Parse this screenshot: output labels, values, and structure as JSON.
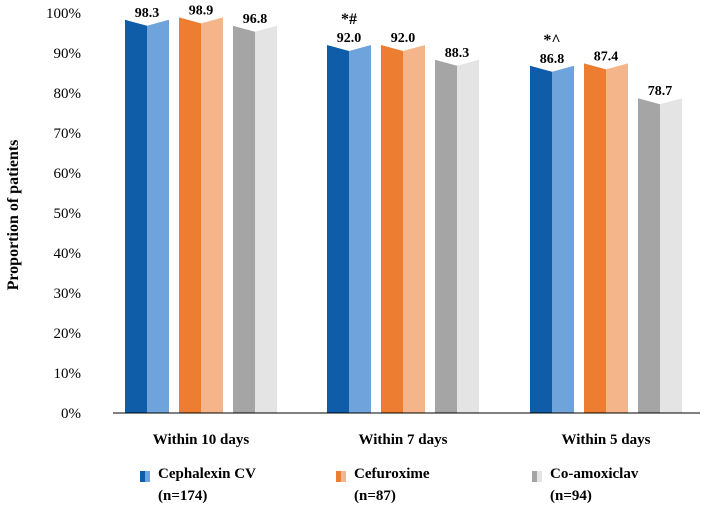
{
  "chart_data": {
    "type": "bar",
    "ylabel": "Proportion of patients",
    "ylim": [
      0,
      100
    ],
    "yticks": [
      "0%",
      "10%",
      "20%",
      "30%",
      "40%",
      "50%",
      "60%",
      "70%",
      "80%",
      "90%",
      "100%"
    ],
    "categories": [
      "Within 10 days",
      "Within 7 days",
      "Within 5 days"
    ],
    "series": [
      {
        "name": "Cephalexin CV",
        "n_label": "(n=174)",
        "values": [
          98.3,
          92.0,
          86.8
        ],
        "labels": [
          "98.3",
          "92.0",
          "86.8"
        ],
        "color_dark": "#0F5DA8",
        "color_light": "#6FA3DC"
      },
      {
        "name": "Cefuroxime",
        "n_label": "(n=87)",
        "values": [
          98.9,
          92.0,
          87.4
        ],
        "labels": [
          "98.9",
          "92.0",
          "87.4"
        ],
        "color_dark": "#ED7D31",
        "color_light": "#F5B58A"
      },
      {
        "name": "Co-amoxiclav",
        "n_label": "(n=94)",
        "values": [
          96.8,
          88.3,
          78.7
        ],
        "labels": [
          "96.8",
          "88.3",
          "78.7"
        ],
        "color_dark": "#A5A5A5",
        "color_light": "#E4E4E4"
      }
    ],
    "annotations": [
      "*$",
      "*#",
      "*^"
    ],
    "grid": false,
    "legend_position": "bottom"
  }
}
